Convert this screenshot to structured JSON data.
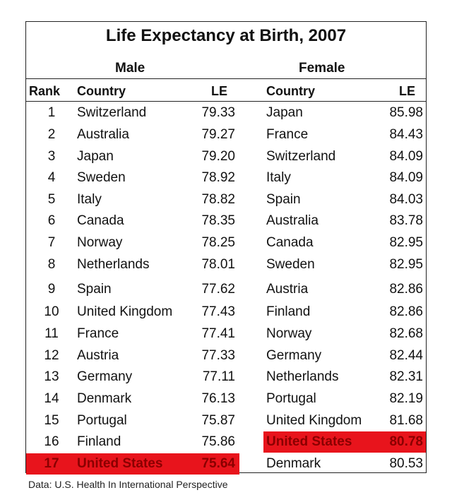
{
  "title": "Life Expectancy at Birth, 2007",
  "groups": {
    "male": "Male",
    "female": "Female"
  },
  "headers": {
    "rank": "Rank",
    "country": "Country",
    "le": "LE"
  },
  "rows": [
    {
      "rank": "1",
      "male_country": "Switzerland",
      "male_le": "79.33",
      "female_country": "Japan",
      "female_le": "85.98"
    },
    {
      "rank": "2",
      "male_country": "Australia",
      "male_le": "79.27",
      "female_country": "France",
      "female_le": "84.43"
    },
    {
      "rank": "3",
      "male_country": "Japan",
      "male_le": "79.20",
      "female_country": "Switzerland",
      "female_le": "84.09"
    },
    {
      "rank": "4",
      "male_country": "Sweden",
      "male_le": "78.92",
      "female_country": "Italy",
      "female_le": "84.09"
    },
    {
      "rank": "5",
      "male_country": "Italy",
      "male_le": "78.82",
      "female_country": "Spain",
      "female_le": "84.03"
    },
    {
      "rank": "6",
      "male_country": "Canada",
      "male_le": "78.35",
      "female_country": "Australia",
      "female_le": "83.78"
    },
    {
      "rank": "7",
      "male_country": "Norway",
      "male_le": "78.25",
      "female_country": "Canada",
      "female_le": "82.95"
    },
    {
      "rank": "8",
      "male_country": "Netherlands",
      "male_le": "78.01",
      "female_country": "Sweden",
      "female_le": "82.95"
    },
    {
      "rank": "9",
      "male_country": "Spain",
      "male_le": "77.62",
      "female_country": "Austria",
      "female_le": "82.86"
    },
    {
      "rank": "10",
      "male_country": "United Kingdom",
      "male_le": "77.43",
      "female_country": "Finland",
      "female_le": "82.86"
    },
    {
      "rank": "11",
      "male_country": "France",
      "male_le": "77.41",
      "female_country": "Norway",
      "female_le": "82.68"
    },
    {
      "rank": "12",
      "male_country": "Austria",
      "male_le": "77.33",
      "female_country": "Germany",
      "female_le": "82.44"
    },
    {
      "rank": "13",
      "male_country": "Germany",
      "male_le": "77.11",
      "female_country": "Netherlands",
      "female_le": "82.31"
    },
    {
      "rank": "14",
      "male_country": "Denmark",
      "male_le": "76.13",
      "female_country": "Portugal",
      "female_le": "82.19"
    },
    {
      "rank": "15",
      "male_country": "Portugal",
      "male_le": "75.87",
      "female_country": "United Kingdom",
      "female_le": "81.68"
    },
    {
      "rank": "16",
      "male_country": "Finland",
      "male_le": "75.86",
      "female_country": "United States",
      "female_le": "80.78",
      "female_highlight": true
    },
    {
      "rank": "17",
      "male_country": "United States",
      "male_le": "75.64",
      "female_country": "Denmark",
      "female_le": "80.53",
      "male_highlight": true
    }
  ],
  "highlight_color": "#e8141c",
  "source": "Data: U.S. Health In International Perspective"
}
